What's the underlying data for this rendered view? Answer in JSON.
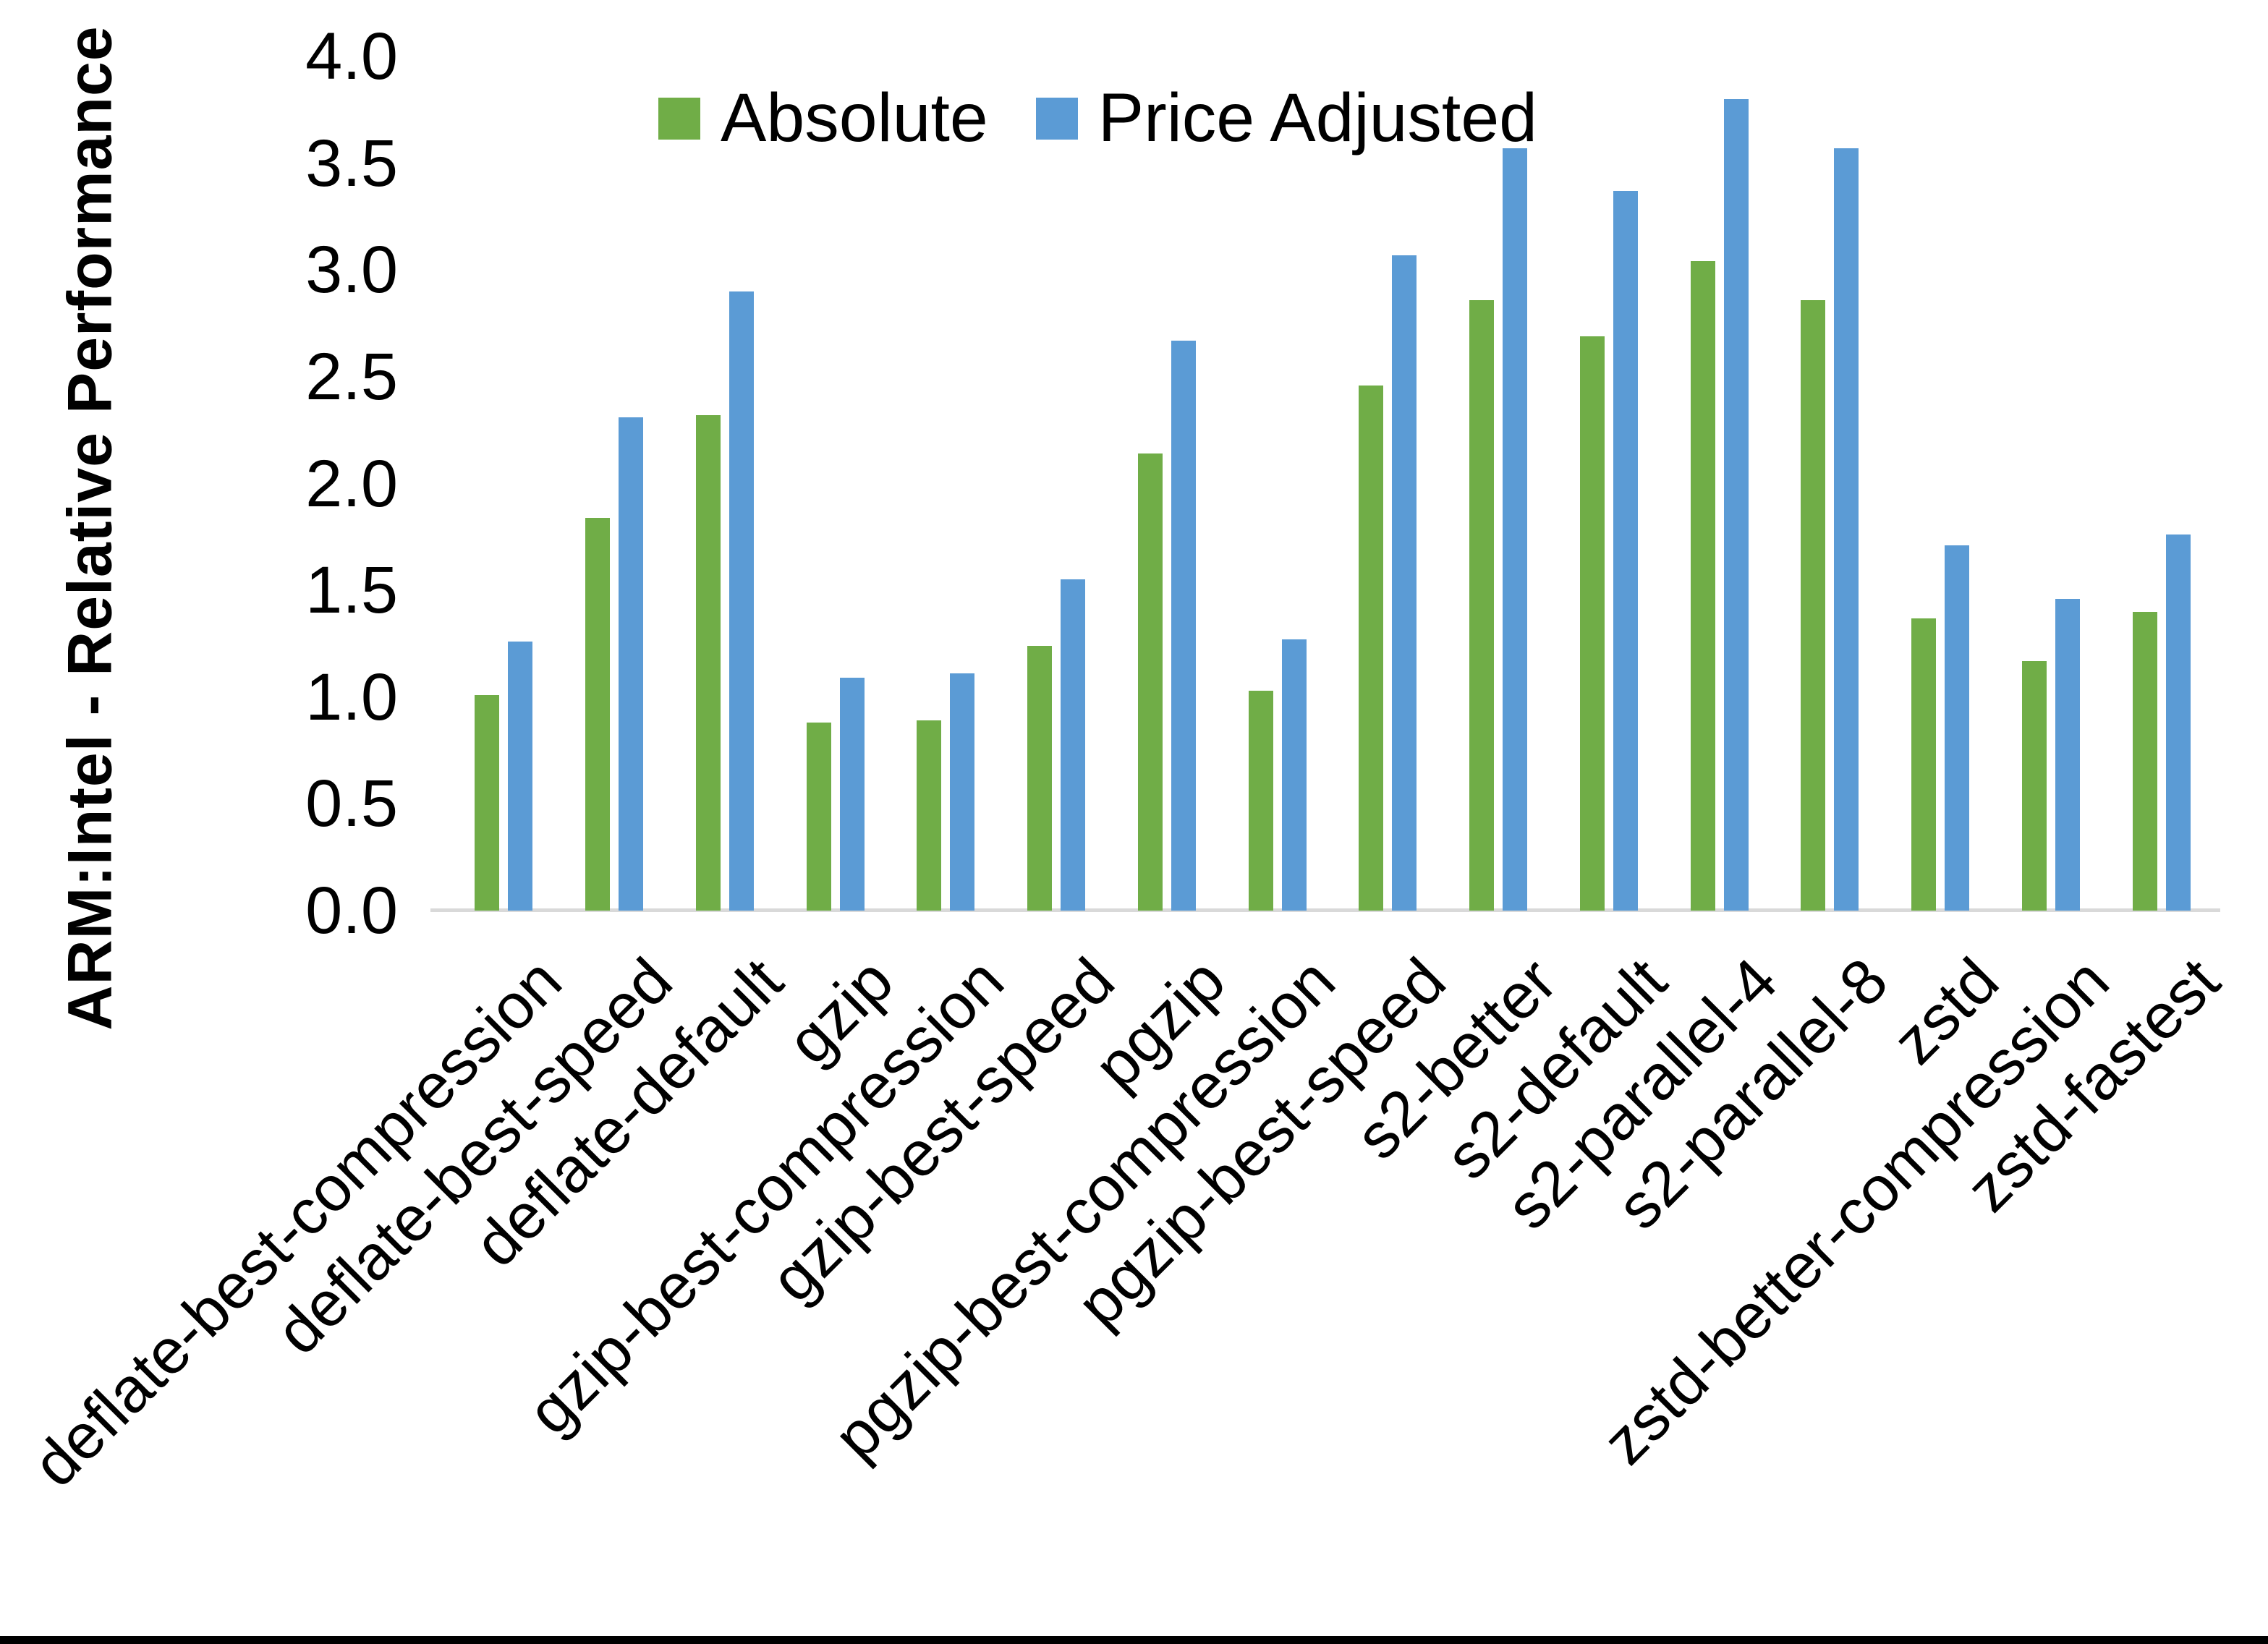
{
  "chart_data": {
    "type": "bar",
    "title": "",
    "ylabel": "ARM:Intel - Relative Performance",
    "xlabel": "",
    "ylim": [
      0.0,
      4.0
    ],
    "ytick_labels": [
      "4.0",
      "3.5",
      "3.0",
      "2.5",
      "2.0",
      "1.5",
      "1.0",
      "0.5",
      "0.0"
    ],
    "grid": false,
    "legend_position": "top-center",
    "background_color": "#FFFFFF",
    "axis_line_color": "#D9D9D9",
    "text_color": "#000000",
    "categories": [
      "deflate-best-compression",
      "deflate-best-speed",
      "deflate-default",
      "gzip",
      "gzip-best-compression",
      "gzip-best-speed",
      "pgzip",
      "pgzip-best-compression",
      "pgzip-best-speed",
      "s2-better",
      "s2-default",
      "s2-parallel-4",
      "s2-parallel-8",
      "zstd",
      "zstd-better-compression",
      "zstd-fastest"
    ],
    "series": [
      {
        "name": "Absolute",
        "color": "#70AD47",
        "values": [
          1.01,
          1.84,
          2.32,
          0.88,
          0.89,
          1.24,
          2.14,
          1.03,
          2.46,
          2.86,
          2.69,
          3.04,
          2.86,
          1.37,
          1.17,
          1.4
        ]
      },
      {
        "name": "Price Adjusted",
        "color": "#5B9BD5",
        "values": [
          1.26,
          2.31,
          2.9,
          1.09,
          1.11,
          1.55,
          2.67,
          1.27,
          3.07,
          3.57,
          3.37,
          3.8,
          3.57,
          1.71,
          1.46,
          1.76
        ]
      }
    ]
  },
  "page": {
    "bottom_border_color": "#000000"
  }
}
